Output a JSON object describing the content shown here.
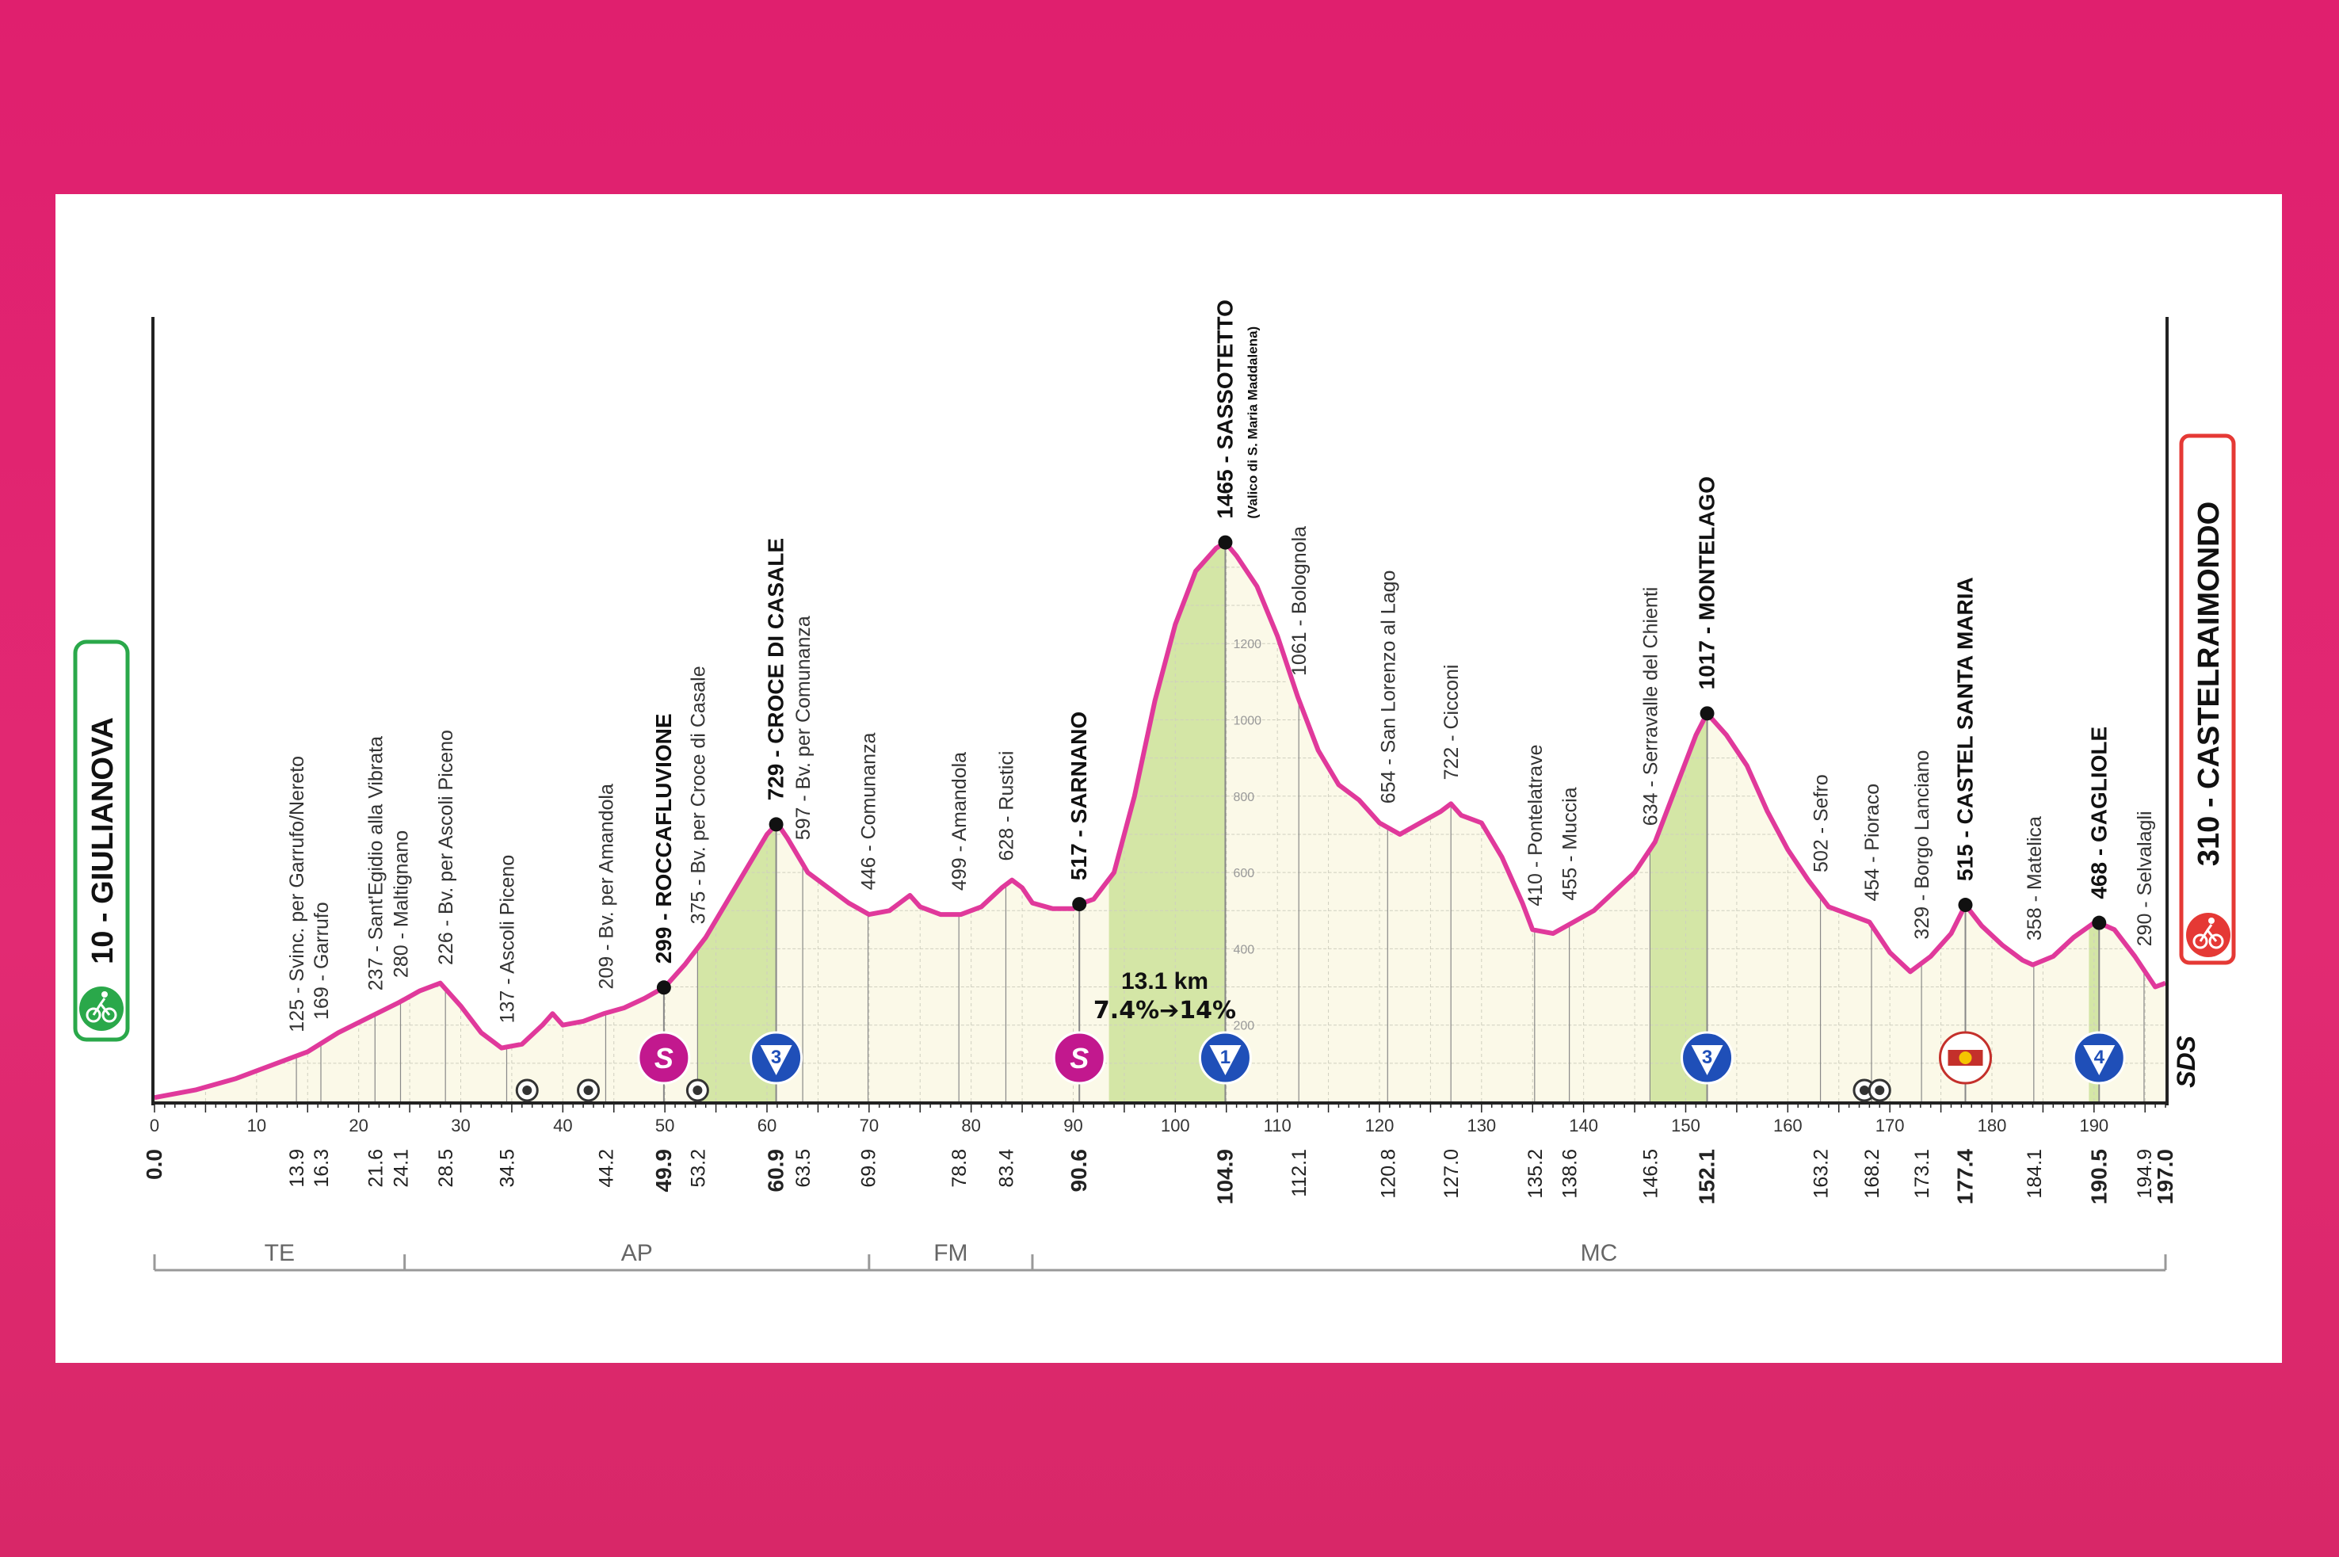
{
  "colors": {
    "background": "#e01f6e",
    "profile_line": "#e0399b",
    "profile_fill": "#fbf9e8",
    "climb_fill": "#d4e6a6",
    "start_box": "#2aa84a",
    "finish_box": "#e53935",
    "sprint_badge": "#c2188e",
    "kom_badge": "#1f4fb8"
  },
  "start": {
    "altitude": "10",
    "name": "GIULIANOVA",
    "label": "10 - GIULIANOVA",
    "icon": "cyclist-icon"
  },
  "finish": {
    "altitude": "310",
    "name": "CASTELRAIMONDO",
    "label": "310 - CASTELRAIMONDO",
    "icon": "cyclist-icon"
  },
  "climb_info": {
    "length": "13.1 km",
    "gradient": "7.4%➔14%"
  },
  "chart_data": {
    "type": "area",
    "title": "",
    "xlabel": "",
    "ylabel": "",
    "xlim": [
      0,
      197
    ],
    "ylim": [
      0,
      1800
    ],
    "profile": [
      [
        0,
        10
      ],
      [
        4,
        30
      ],
      [
        8,
        60
      ],
      [
        12,
        100
      ],
      [
        15,
        130
      ],
      [
        18,
        180
      ],
      [
        21,
        220
      ],
      [
        24,
        260
      ],
      [
        26,
        290
      ],
      [
        28,
        310
      ],
      [
        30,
        250
      ],
      [
        32,
        180
      ],
      [
        34,
        140
      ],
      [
        36,
        150
      ],
      [
        38,
        200
      ],
      [
        39,
        230
      ],
      [
        40,
        200
      ],
      [
        42,
        210
      ],
      [
        44,
        230
      ],
      [
        46,
        245
      ],
      [
        48,
        270
      ],
      [
        50,
        300
      ],
      [
        52,
        360
      ],
      [
        54,
        430
      ],
      [
        56,
        520
      ],
      [
        58,
        610
      ],
      [
        60,
        700
      ],
      [
        61,
        729
      ],
      [
        62,
        690
      ],
      [
        64,
        600
      ],
      [
        66,
        560
      ],
      [
        68,
        520
      ],
      [
        70,
        490
      ],
      [
        72,
        500
      ],
      [
        73,
        520
      ],
      [
        74,
        540
      ],
      [
        75,
        510
      ],
      [
        77,
        490
      ],
      [
        79,
        490
      ],
      [
        81,
        510
      ],
      [
        83,
        560
      ],
      [
        84,
        580
      ],
      [
        85,
        560
      ],
      [
        86,
        520
      ],
      [
        88,
        505
      ],
      [
        90,
        505
      ],
      [
        90.6,
        517
      ],
      [
        92,
        530
      ],
      [
        94,
        600
      ],
      [
        96,
        800
      ],
      [
        98,
        1050
      ],
      [
        100,
        1250
      ],
      [
        102,
        1390
      ],
      [
        104,
        1450
      ],
      [
        104.9,
        1465
      ],
      [
        106,
        1430
      ],
      [
        108,
        1350
      ],
      [
        110,
        1220
      ],
      [
        112,
        1060
      ],
      [
        114,
        920
      ],
      [
        116,
        830
      ],
      [
        118,
        790
      ],
      [
        120,
        730
      ],
      [
        122,
        700
      ],
      [
        124,
        730
      ],
      [
        126,
        760
      ],
      [
        127,
        780
      ],
      [
        128,
        750
      ],
      [
        130,
        730
      ],
      [
        132,
        640
      ],
      [
        134,
        520
      ],
      [
        135,
        450
      ],
      [
        137,
        440
      ],
      [
        139,
        470
      ],
      [
        141,
        500
      ],
      [
        143,
        550
      ],
      [
        145,
        600
      ],
      [
        147,
        680
      ],
      [
        149,
        820
      ],
      [
        151,
        960
      ],
      [
        152.1,
        1017
      ],
      [
        154,
        960
      ],
      [
        156,
        880
      ],
      [
        158,
        760
      ],
      [
        160,
        660
      ],
      [
        162,
        580
      ],
      [
        164,
        510
      ],
      [
        166,
        490
      ],
      [
        168,
        470
      ],
      [
        170,
        390
      ],
      [
        172,
        340
      ],
      [
        174,
        380
      ],
      [
        176,
        440
      ],
      [
        177.4,
        515
      ],
      [
        179,
        460
      ],
      [
        181,
        410
      ],
      [
        183,
        370
      ],
      [
        184,
        358
      ],
      [
        186,
        380
      ],
      [
        188,
        430
      ],
      [
        190,
        468
      ],
      [
        190.5,
        468
      ],
      [
        192,
        450
      ],
      [
        194,
        380
      ],
      [
        196,
        300
      ],
      [
        197,
        310
      ]
    ],
    "climb_segments": [
      [
        53.2,
        60.9
      ],
      [
        93.5,
        104.9
      ],
      [
        146.5,
        152.1
      ],
      [
        189.5,
        190.5
      ]
    ],
    "x_ticks": [
      0,
      10,
      20,
      30,
      40,
      50,
      60,
      70,
      80,
      90,
      100,
      110,
      120,
      130,
      140,
      150,
      160,
      170,
      180,
      190
    ],
    "y_ticks": [
      200,
      400,
      600,
      800,
      1000,
      1200
    ],
    "locations": [
      {
        "km": "0.0",
        "label": "",
        "bold": true
      },
      {
        "km": "13.9",
        "label": "125 - Svinc. per Garrufo/Nereto",
        "bold": false
      },
      {
        "km": "16.3",
        "label": "169 - Garrufo",
        "bold": false
      },
      {
        "km": "21.6",
        "label": "237 - Sant'Egidio alla Vibrata",
        "bold": false
      },
      {
        "km": "24.1",
        "label": "280 - Maltignano",
        "bold": false
      },
      {
        "km": "28.5",
        "label": "226 - Bv. per Ascoli Piceno",
        "bold": false
      },
      {
        "km": "34.5",
        "label": "137 - Ascoli Piceno",
        "bold": false
      },
      {
        "km": "44.2",
        "label": "209 - Bv. per Amandola",
        "bold": false
      },
      {
        "km": "49.9",
        "label": "299 - ROCCAFLUVIONE",
        "bold": true
      },
      {
        "km": "53.2",
        "label": "375 - Bv. per Croce di Casale",
        "bold": false
      },
      {
        "km": "60.9",
        "label": "729 - CROCE DI CASALE",
        "bold": true
      },
      {
        "km": "63.5",
        "label": "597 - Bv. per Comunanza",
        "bold": false
      },
      {
        "km": "69.9",
        "label": "446 - Comunanza",
        "bold": false
      },
      {
        "km": "78.8",
        "label": "499 - Amandola",
        "bold": false
      },
      {
        "km": "83.4",
        "label": "628 - Rustici",
        "bold": false
      },
      {
        "km": "90.6",
        "label": "517 - SARNANO",
        "bold": true
      },
      {
        "km": "104.9",
        "label": "1465 - SASSOTETTO",
        "bold": true,
        "sublabel": "(Valico di S. Maria Maddalena)"
      },
      {
        "km": "112.1",
        "label": "1061 - Bolognola",
        "bold": false
      },
      {
        "km": "120.8",
        "label": "654 - San Lorenzo al Lago",
        "bold": false
      },
      {
        "km": "127.0",
        "label": "722 - Cicconi",
        "bold": false
      },
      {
        "km": "135.2",
        "label": "410 - Pontelatrave",
        "bold": false
      },
      {
        "km": "138.6",
        "label": "455 - Muccia",
        "bold": false
      },
      {
        "km": "146.5",
        "label": "634 - Serravalle del Chienti",
        "bold": false
      },
      {
        "km": "152.1",
        "label": "1017 - MONTELAGO",
        "bold": true
      },
      {
        "km": "163.2",
        "label": "502 - Sefro",
        "bold": false
      },
      {
        "km": "168.2",
        "label": "454 - Pioraco",
        "bold": false
      },
      {
        "km": "173.1",
        "label": "329 - Borgo Lanciano",
        "bold": false
      },
      {
        "km": "177.4",
        "label": "515 - CASTEL SANTA MARIA",
        "bold": true
      },
      {
        "km": "184.1",
        "label": "358 - Matelica",
        "bold": false
      },
      {
        "km": "190.5",
        "label": "468 - GAGLIOLE",
        "bold": true
      },
      {
        "km": "194.9",
        "label": "290 - Selvalagli",
        "bold": false
      },
      {
        "km": "197.0",
        "label": "",
        "bold": true
      }
    ],
    "dots": [
      49.9,
      60.9,
      90.6,
      104.9,
      152.1,
      177.4,
      190.5
    ],
    "badges": [
      {
        "km": 49.9,
        "type": "sprint",
        "label": "S",
        "icon": "sprint-icon"
      },
      {
        "km": 60.9,
        "type": "kom",
        "label": "3",
        "icon": "kom-icon"
      },
      {
        "km": 90.6,
        "type": "sprint",
        "label": "S",
        "icon": "sprint-icon"
      },
      {
        "km": 104.9,
        "type": "kom",
        "label": "1",
        "icon": "kom-icon"
      },
      {
        "km": 152.1,
        "type": "kom",
        "label": "3",
        "icon": "kom-icon"
      },
      {
        "km": 177.4,
        "type": "redbull",
        "label": "",
        "icon": "red-bull-km-icon"
      },
      {
        "km": 190.5,
        "type": "kom",
        "label": "4",
        "icon": "kom-icon"
      }
    ],
    "small_markers": [
      36.5,
      42.5,
      53.2,
      167.5,
      169.0
    ],
    "provinces": [
      {
        "label": "TE",
        "from": 0,
        "to": 24.5
      },
      {
        "label": "AP",
        "from": 24.5,
        "to": 70
      },
      {
        "label": "FM",
        "from": 70,
        "to": 86
      },
      {
        "label": "MC",
        "from": 86,
        "to": 197
      }
    ],
    "brand_mark": "SDS"
  }
}
